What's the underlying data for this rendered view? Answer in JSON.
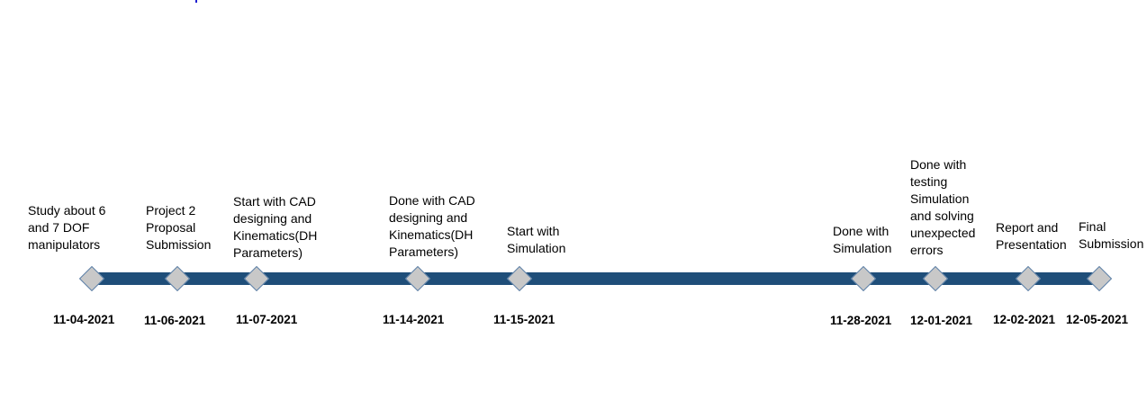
{
  "colors": {
    "track": "#1f4e79",
    "marker_fill": "#c8c8c8",
    "marker_border": "#5a7fa8"
  },
  "milestones": [
    {
      "date": "11-04-2021",
      "label": "Study about 6\nand 7 DOF\nmanipulators"
    },
    {
      "date": "11-06-2021",
      "label": "Project 2\nProposal\nSubmission"
    },
    {
      "date": "11-07-2021",
      "label": "Start with CAD\ndesigning and\nKinematics(DH\nParameters)"
    },
    {
      "date": "11-14-2021",
      "label": "Done with CAD\ndesigning and\nKinematics(DH\nParameters)"
    },
    {
      "date": "11-15-2021",
      "label": "Start with\nSimulation"
    },
    {
      "date": "11-28-2021",
      "label": "Done with\nSimulation"
    },
    {
      "date": "12-01-2021",
      "label": "Done with\ntesting\nSimulation\nand solving\nunexpected\nerrors"
    },
    {
      "date": "12-02-2021",
      "label": "Report and\nPresentation"
    },
    {
      "date": "12-05-2021",
      "label": "Final\nSubmission"
    }
  ]
}
